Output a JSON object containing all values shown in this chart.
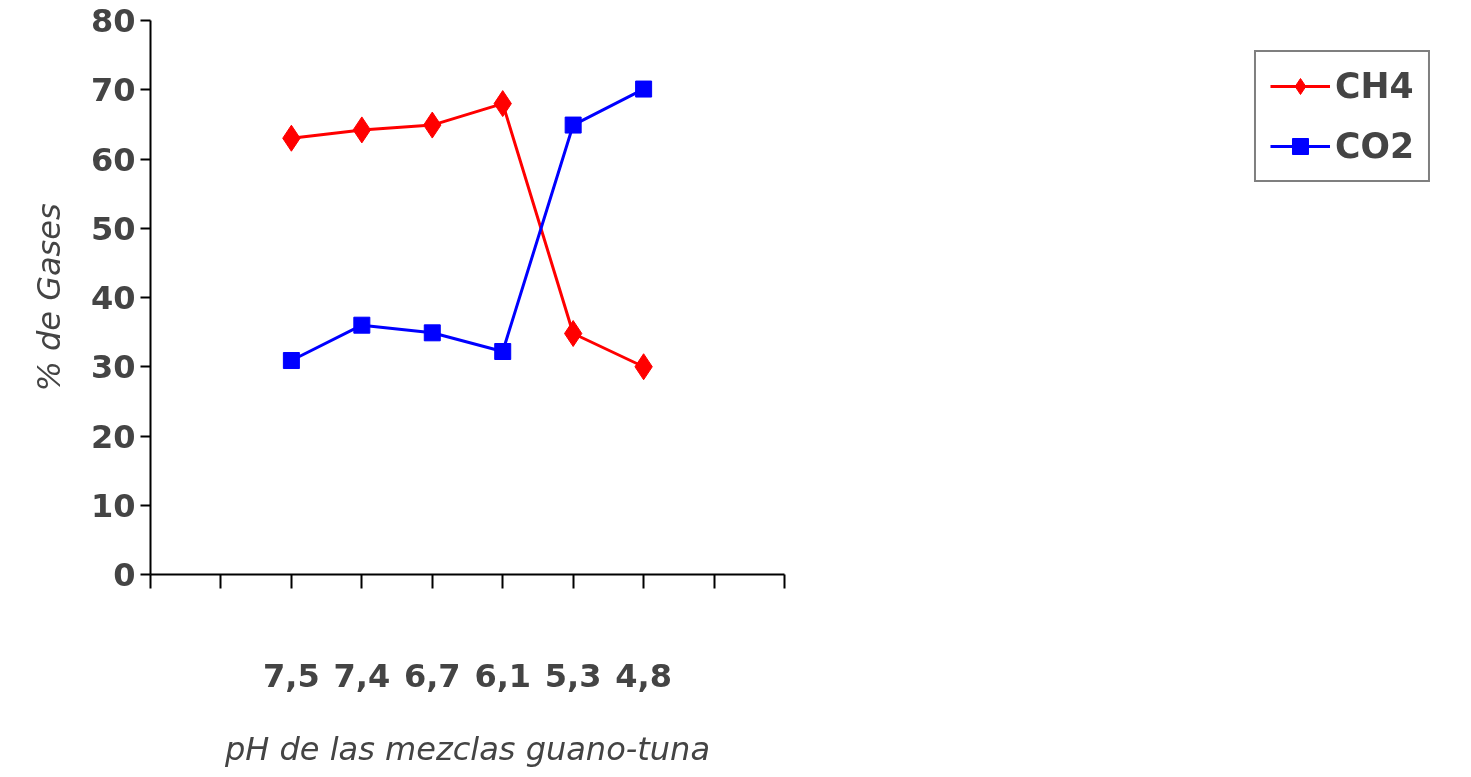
{
  "chart_data": {
    "type": "line",
    "xlabel": "pH de las mezclas guano-tuna",
    "ylabel": "% de Gases",
    "categories": [
      null,
      null,
      "7,5",
      "7,4",
      "6,7",
      "6,1",
      "5,3",
      "4,8",
      null,
      null
    ],
    "series": [
      {
        "name": "CH4",
        "color": "#ff0000",
        "marker": "diamond",
        "values": [
          null,
          null,
          63,
          64.2,
          64.9,
          68,
          34.8,
          30,
          null,
          null
        ]
      },
      {
        "name": "CO2",
        "color": "#0000ff",
        "marker": "square",
        "values": [
          null,
          null,
          30.9,
          36,
          34.9,
          32.2,
          64.9,
          70.1,
          null,
          null
        ]
      }
    ],
    "ylim": [
      0,
      80
    ],
    "yticks": [
      0,
      10,
      20,
      30,
      40,
      50,
      60,
      70,
      80
    ],
    "grid": false,
    "legend": "right",
    "line_style": "solid"
  }
}
